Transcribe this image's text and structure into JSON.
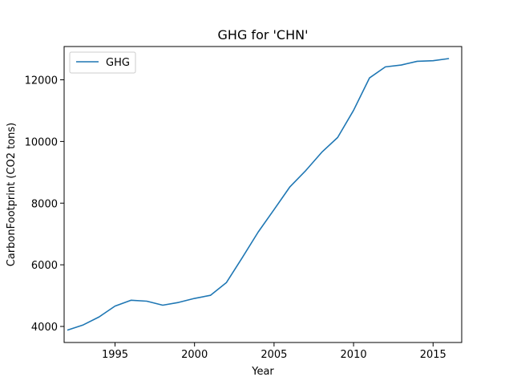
{
  "chart_data": {
    "type": "line",
    "title": "GHG for 'CHN'",
    "xlabel": "Year",
    "ylabel": "CarbonFootprint (CO2 tons)",
    "xlim": [
      1991.8,
      2016.8
    ],
    "ylim": [
      3480,
      13080
    ],
    "xticks": [
      1995,
      2000,
      2005,
      2010,
      2015
    ],
    "yticks": [
      4000,
      6000,
      8000,
      10000,
      12000
    ],
    "grid": false,
    "legend_position": "upper left",
    "colors": {
      "series": "#1f77b4",
      "axes": "#000000",
      "background": "#ffffff"
    },
    "series": [
      {
        "name": "GHG",
        "x": [
          1992,
          1993,
          1994,
          1995,
          1996,
          1997,
          1998,
          1999,
          2000,
          2001,
          2002,
          2003,
          2004,
          2005,
          2006,
          2007,
          2008,
          2009,
          2010,
          2011,
          2012,
          2013,
          2014,
          2015,
          2016
        ],
        "values": [
          3880,
          4050,
          4310,
          4660,
          4850,
          4820,
          4690,
          4780,
          4910,
          5010,
          5420,
          6230,
          7060,
          7790,
          8530,
          9060,
          9650,
          10130,
          11010,
          12060,
          12420,
          12480,
          12600,
          12620,
          12690
        ]
      }
    ]
  }
}
